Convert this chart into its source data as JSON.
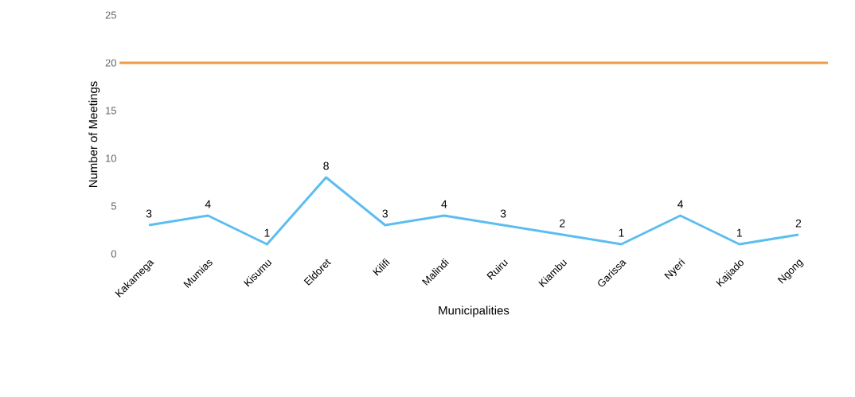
{
  "chart_data": {
    "type": "line",
    "xlabel": "Municipalities",
    "ylabel": "Number of Meetings",
    "categories": [
      "Kakamega",
      "Mumias",
      "Kisumu",
      "Eldoret",
      "Kilifi",
      "Malindi",
      "Ruiru",
      "Kiambu",
      "Garissa",
      "Nyeri",
      "Kajiado",
      "Ngong"
    ],
    "series": [
      {
        "color": "#5cbdf0",
        "values": [
          3,
          4,
          1,
          8,
          3,
          4,
          3,
          2,
          1,
          4,
          1,
          2
        ]
      }
    ],
    "ref_lines": [
      {
        "axis": "y",
        "value": 20,
        "color": "#ed9b4c"
      }
    ],
    "ylim": [
      0,
      25
    ],
    "yticks": [
      0,
      5,
      10,
      15,
      20,
      25
    ],
    "data_labels": true,
    "grid": false,
    "marker": "none"
  }
}
